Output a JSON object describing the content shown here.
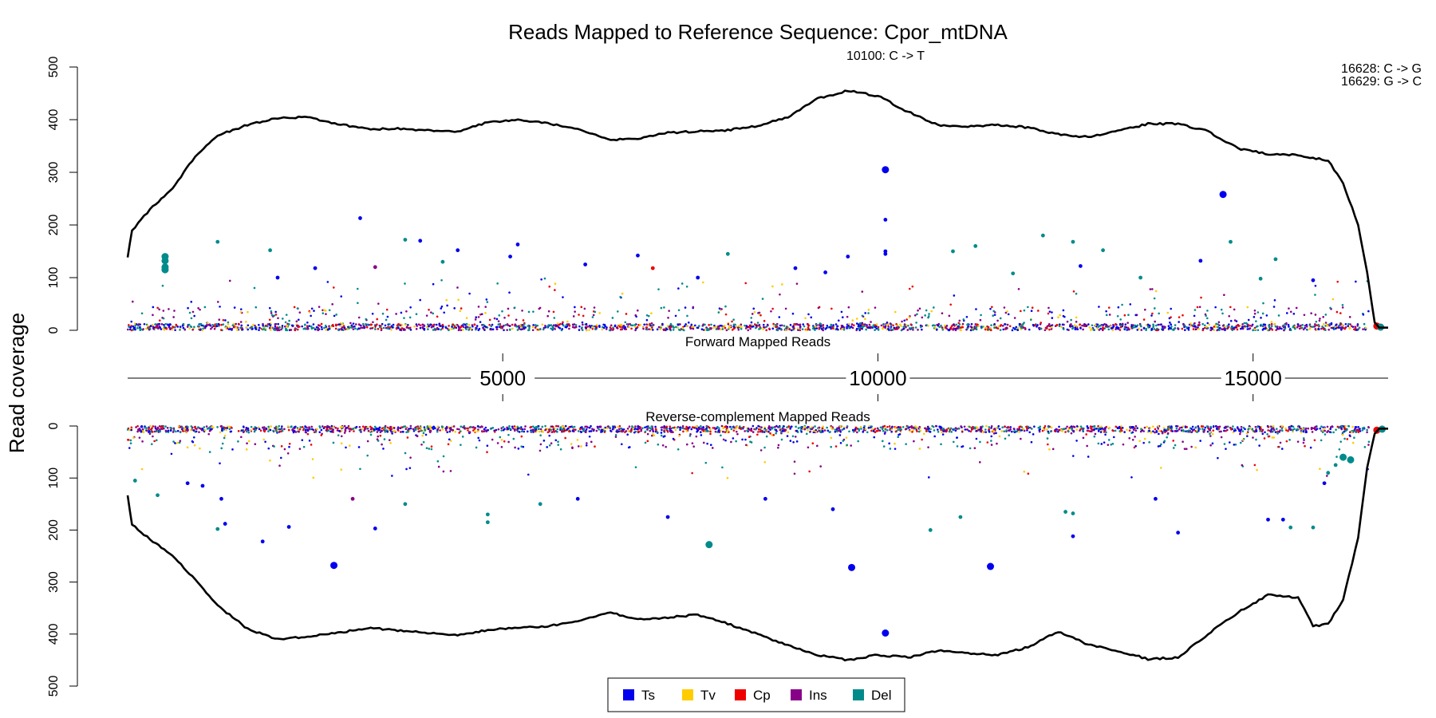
{
  "chart_data": {
    "type": "scatter",
    "title": "Reads Mapped to Reference Sequence: Cpor_mtDNA",
    "ylabel": "Read coverage",
    "panels": [
      {
        "name": "Forward Mapped Reads",
        "ylim": [
          0,
          500
        ],
        "yticks": [
          0,
          100,
          200,
          300,
          400,
          500
        ]
      },
      {
        "name": "Reverse-complement Mapped Reads",
        "ylim": [
          0,
          500
        ],
        "yticks": [
          0,
          100,
          200,
          300,
          400,
          500
        ]
      }
    ],
    "xlim": [
      1,
      16800
    ],
    "xticks": [
      5000,
      10000,
      15000
    ],
    "annotations": [
      "10100: C -> T",
      "16628: C -> G",
      "16629: G -> C"
    ],
    "legend": {
      "position": "bottom-center",
      "items": [
        {
          "label": "Ts",
          "color": "#0000ee"
        },
        {
          "label": "Tv",
          "color": "#ffcc00"
        },
        {
          "label": "Cp",
          "color": "#ee0000"
        },
        {
          "label": "Ins",
          "color": "#880088"
        },
        {
          "label": "Del",
          "color": "#008b8b"
        }
      ]
    },
    "forward_coverage": [
      [
        1,
        140
      ],
      [
        60,
        190
      ],
      [
        300,
        230
      ],
      [
        600,
        270
      ],
      [
        900,
        330
      ],
      [
        1200,
        370
      ],
      [
        1600,
        390
      ],
      [
        2000,
        403
      ],
      [
        2400,
        405
      ],
      [
        2800,
        392
      ],
      [
        3200,
        382
      ],
      [
        3600,
        383
      ],
      [
        4000,
        380
      ],
      [
        4400,
        378
      ],
      [
        4800,
        395
      ],
      [
        5200,
        400
      ],
      [
        5600,
        393
      ],
      [
        6000,
        382
      ],
      [
        6400,
        362
      ],
      [
        6800,
        364
      ],
      [
        7200,
        375
      ],
      [
        7600,
        378
      ],
      [
        8000,
        380
      ],
      [
        8400,
        388
      ],
      [
        8800,
        405
      ],
      [
        9200,
        440
      ],
      [
        9600,
        455
      ],
      [
        10000,
        445
      ],
      [
        10400,
        415
      ],
      [
        10800,
        390
      ],
      [
        11200,
        387
      ],
      [
        11600,
        390
      ],
      [
        12000,
        385
      ],
      [
        12400,
        372
      ],
      [
        12800,
        367
      ],
      [
        13200,
        378
      ],
      [
        13600,
        392
      ],
      [
        14000,
        392
      ],
      [
        14400,
        378
      ],
      [
        14800,
        345
      ],
      [
        15200,
        335
      ],
      [
        15600,
        333
      ],
      [
        16000,
        322
      ],
      [
        16200,
        280
      ],
      [
        16400,
        200
      ],
      [
        16520,
        110
      ],
      [
        16620,
        15
      ],
      [
        16680,
        5
      ],
      [
        16800,
        5
      ]
    ],
    "reverse_coverage": [
      [
        1,
        135
      ],
      [
        60,
        190
      ],
      [
        300,
        218
      ],
      [
        600,
        250
      ],
      [
        900,
        295
      ],
      [
        1200,
        345
      ],
      [
        1600,
        390
      ],
      [
        2000,
        410
      ],
      [
        2400,
        405
      ],
      [
        2800,
        398
      ],
      [
        3200,
        388
      ],
      [
        3600,
        393
      ],
      [
        4000,
        398
      ],
      [
        4400,
        403
      ],
      [
        4800,
        392
      ],
      [
        5200,
        388
      ],
      [
        5600,
        385
      ],
      [
        6000,
        375
      ],
      [
        6400,
        358
      ],
      [
        6800,
        372
      ],
      [
        7200,
        368
      ],
      [
        7600,
        363
      ],
      [
        8000,
        380
      ],
      [
        8400,
        400
      ],
      [
        8800,
        422
      ],
      [
        9200,
        440
      ],
      [
        9600,
        450
      ],
      [
        10000,
        440
      ],
      [
        10400,
        445
      ],
      [
        10800,
        432
      ],
      [
        11200,
        437
      ],
      [
        11600,
        440
      ],
      [
        12000,
        425
      ],
      [
        12400,
        395
      ],
      [
        12800,
        420
      ],
      [
        13200,
        432
      ],
      [
        13600,
        448
      ],
      [
        14000,
        445
      ],
      [
        14400,
        400
      ],
      [
        14800,
        358
      ],
      [
        15200,
        325
      ],
      [
        15600,
        330
      ],
      [
        15800,
        385
      ],
      [
        16000,
        380
      ],
      [
        16200,
        335
      ],
      [
        16400,
        215
      ],
      [
        16520,
        80
      ],
      [
        16620,
        15
      ],
      [
        16680,
        5
      ],
      [
        16800,
        5
      ]
    ],
    "forward_variants": [
      [
        10100,
        305,
        "Ts",
        1
      ],
      [
        14600,
        258,
        "Ts",
        1
      ],
      [
        3100,
        213,
        "Ts",
        0
      ],
      [
        10100,
        210,
        "Ts",
        0
      ],
      [
        10100,
        150,
        "Ts",
        0
      ],
      [
        10100,
        145,
        "Ts",
        0
      ],
      [
        1200,
        168,
        "Del",
        0
      ],
      [
        3700,
        172,
        "Del",
        0
      ],
      [
        3900,
        170,
        "Ts",
        0
      ],
      [
        1900,
        152,
        "Del",
        0
      ],
      [
        4400,
        152,
        "Ts",
        0
      ],
      [
        5200,
        163,
        "Ts",
        0
      ],
      [
        12200,
        180,
        "Del",
        0
      ],
      [
        12600,
        168,
        "Del",
        0
      ],
      [
        11300,
        160,
        "Del",
        0
      ],
      [
        14700,
        168,
        "Del",
        0
      ],
      [
        500,
        140,
        "Del",
        1
      ],
      [
        500,
        132,
        "Del",
        1
      ],
      [
        500,
        120,
        "Del",
        1
      ],
      [
        500,
        115,
        "Del",
        1
      ],
      [
        6800,
        142,
        "Ts",
        0
      ],
      [
        7000,
        118,
        "Cp",
        0
      ],
      [
        9600,
        140,
        "Ts",
        0
      ],
      [
        11000,
        150,
        "Del",
        0
      ],
      [
        13000,
        152,
        "Del",
        0
      ],
      [
        15300,
        135,
        "Del",
        0
      ],
      [
        14300,
        132,
        "Ts",
        0
      ],
      [
        8000,
        145,
        "Del",
        0
      ],
      [
        5100,
        140,
        "Ts",
        0
      ],
      [
        4200,
        130,
        "Del",
        0
      ],
      [
        3300,
        120,
        "Ins",
        0
      ],
      [
        2500,
        118,
        "Ts",
        0
      ],
      [
        6100,
        125,
        "Ts",
        0
      ],
      [
        8900,
        118,
        "Ts",
        0
      ],
      [
        12700,
        122,
        "Ts",
        0
      ],
      [
        15800,
        95,
        "Ts",
        0
      ],
      [
        2000,
        100,
        "Ts",
        0
      ],
      [
        7600,
        100,
        "Ts",
        0
      ],
      [
        9300,
        110,
        "Ts",
        0
      ],
      [
        11800,
        108,
        "Del",
        0
      ],
      [
        13500,
        100,
        "Del",
        0
      ],
      [
        15100,
        98,
        "Del",
        0
      ],
      [
        16650,
        8,
        "Cp",
        1
      ],
      [
        16700,
        6,
        "Del",
        1
      ]
    ],
    "reverse_variants": [
      [
        10100,
        398,
        "Ts",
        1
      ],
      [
        2750,
        268,
        "Ts",
        1
      ],
      [
        9650,
        272,
        "Ts",
        1
      ],
      [
        11500,
        270,
        "Ts",
        1
      ],
      [
        7750,
        228,
        "Del",
        1
      ],
      [
        1800,
        222,
        "Ts",
        0
      ],
      [
        12600,
        212,
        "Ts",
        0
      ],
      [
        14000,
        205,
        "Ts",
        0
      ],
      [
        1300,
        188,
        "Ts",
        0
      ],
      [
        2150,
        194,
        "Ts",
        0
      ],
      [
        3300,
        197,
        "Ts",
        0
      ],
      [
        1200,
        198,
        "Del",
        0
      ],
      [
        15500,
        195,
        "Del",
        0
      ],
      [
        15800,
        195,
        "Del",
        0
      ],
      [
        15200,
        180,
        "Ts",
        0
      ],
      [
        15400,
        180,
        "Ts",
        0
      ],
      [
        10700,
        200,
        "Del",
        0
      ],
      [
        4800,
        185,
        "Del",
        0
      ],
      [
        4800,
        170,
        "Del",
        0
      ],
      [
        11100,
        175,
        "Del",
        0
      ],
      [
        7200,
        175,
        "Ts",
        0
      ],
      [
        12500,
        165,
        "Del",
        0
      ],
      [
        12600,
        168,
        "Del",
        0
      ],
      [
        9400,
        160,
        "Ts",
        0
      ],
      [
        3000,
        140,
        "Ins",
        0
      ],
      [
        1250,
        140,
        "Ts",
        0
      ],
      [
        5500,
        150,
        "Del",
        0
      ],
      [
        100,
        105,
        "Del",
        0
      ],
      [
        400,
        133,
        "Del",
        0
      ],
      [
        800,
        110,
        "Ts",
        0
      ],
      [
        1000,
        115,
        "Ts",
        0
      ],
      [
        3700,
        150,
        "Del",
        0
      ],
      [
        6000,
        140,
        "Ts",
        0
      ],
      [
        8500,
        140,
        "Ts",
        0
      ],
      [
        13700,
        140,
        "Ts",
        0
      ],
      [
        16300,
        65,
        "Del",
        1
      ],
      [
        16200,
        60,
        "Del",
        1
      ],
      [
        16100,
        75,
        "Del",
        0
      ],
      [
        16000,
        90,
        "Del",
        0
      ],
      [
        15950,
        110,
        "Ts",
        0
      ],
      [
        16650,
        8,
        "Cp",
        1
      ],
      [
        16720,
        6,
        "Del",
        1
      ]
    ]
  }
}
